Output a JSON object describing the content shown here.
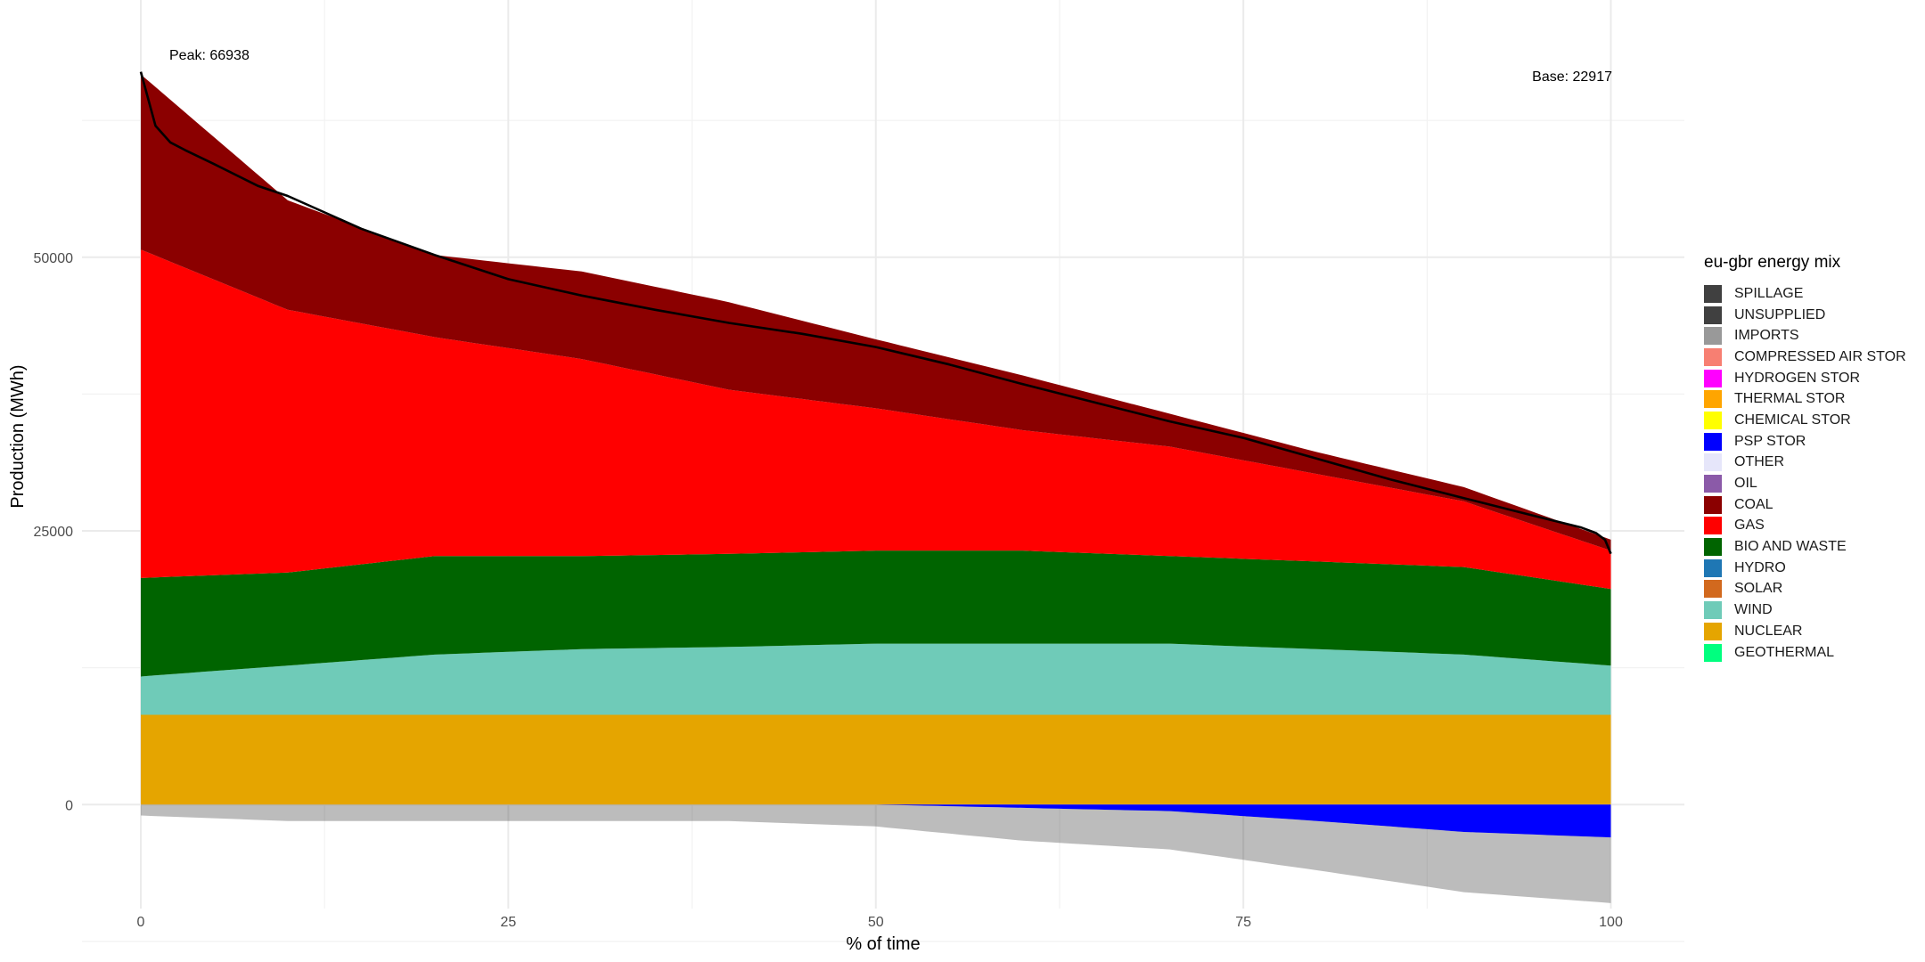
{
  "chart_data": {
    "type": "area",
    "title": "",
    "xlabel": "% of time",
    "ylabel": "Production (MWh)",
    "xlim": [
      -4,
      105
    ],
    "ylim": [
      -9500,
      73500
    ],
    "x_ticks": [
      0,
      25,
      50,
      75,
      100
    ],
    "y_ticks": [
      0,
      25000,
      50000
    ],
    "grid": true,
    "legend_position": "right",
    "annotations": {
      "peak_label": "Peak: 66938",
      "base_label": "Base: 22917"
    },
    "load_curve": {
      "x": [
        0,
        1,
        2,
        3,
        5,
        8,
        10,
        15,
        20,
        25,
        30,
        35,
        40,
        45,
        50,
        55,
        60,
        65,
        70,
        75,
        80,
        85,
        90,
        95,
        98,
        99,
        99.6,
        100
      ],
      "y": [
        66938,
        62000,
        60500,
        59800,
        58500,
        56500,
        55600,
        52600,
        50200,
        48000,
        46500,
        45200,
        44000,
        43000,
        41800,
        40200,
        38400,
        36700,
        35000,
        33500,
        31600,
        29700,
        28000,
        26300,
        25300,
        24800,
        24200,
        22917
      ]
    },
    "stack_profiles": {
      "x": [
        0,
        10,
        20,
        30,
        40,
        50,
        60,
        70,
        80,
        90,
        100
      ],
      "series": [
        {
          "name": "NUCLEAR",
          "values": [
            8200,
            8200,
            8200,
            8200,
            8200,
            8200,
            8200,
            8200,
            8200,
            8200,
            8200
          ]
        },
        {
          "name": "WIND",
          "values": [
            3500,
            4500,
            5500,
            6000,
            6200,
            6500,
            6500,
            6500,
            6000,
            5500,
            4500
          ]
        },
        {
          "name": "BIO AND WASTE",
          "values": [
            9000,
            8500,
            9000,
            8500,
            8500,
            8500,
            8500,
            8000,
            8000,
            8000,
            7000
          ]
        },
        {
          "name": "GAS",
          "values": [
            30000,
            24000,
            20000,
            18000,
            15000,
            13000,
            11000,
            10000,
            8000,
            6000,
            3500
          ]
        },
        {
          "name": "COAL",
          "values": [
            16000,
            10000,
            7500,
            8000,
            8000,
            6300,
            5000,
            3000,
            2000,
            1300,
            1000
          ]
        },
        {
          "name": "PSP STOR",
          "values": [
            0,
            0,
            0,
            0,
            0,
            0,
            -300,
            -600,
            -1500,
            -2500,
            -3000
          ]
        },
        {
          "name": "SPILLAGE",
          "values": [
            -1000,
            -1500,
            -1500,
            -1500,
            -1500,
            -2000,
            -3000,
            -3500,
            -4500,
            -5500,
            -6000
          ]
        }
      ]
    },
    "legend": {
      "title": "eu-gbr energy mix",
      "items": [
        {
          "label": "SPILLAGE",
          "color": "#404040"
        },
        {
          "label": "UNSUPPLIED",
          "color": "#404040"
        },
        {
          "label": "IMPORTS",
          "color": "#999999"
        },
        {
          "label": "COMPRESSED AIR STOR",
          "color": "#f77f72"
        },
        {
          "label": "HYDROGEN STOR",
          "color": "#ff00ff"
        },
        {
          "label": "THERMAL STOR",
          "color": "#ffa500"
        },
        {
          "label": "CHEMICAL STOR",
          "color": "#ffff00"
        },
        {
          "label": "PSP STOR",
          "color": "#0000ff"
        },
        {
          "label": "OTHER",
          "color": "#e6e6fa"
        },
        {
          "label": "OIL",
          "color": "#8b5aa8"
        },
        {
          "label": "COAL",
          "color": "#8b0000"
        },
        {
          "label": "GAS",
          "color": "#ff0000"
        },
        {
          "label": "BIO AND WASTE",
          "color": "#006400"
        },
        {
          "label": "HYDRO",
          "color": "#1f77b4"
        },
        {
          "label": "SOLAR",
          "color": "#d2691e"
        },
        {
          "label": "WIND",
          "color": "#6fcbb8"
        },
        {
          "label": "NUCLEAR",
          "color": "#e5a500"
        },
        {
          "label": "GEOTHERMAL",
          "color": "#00ff7f"
        }
      ]
    }
  }
}
